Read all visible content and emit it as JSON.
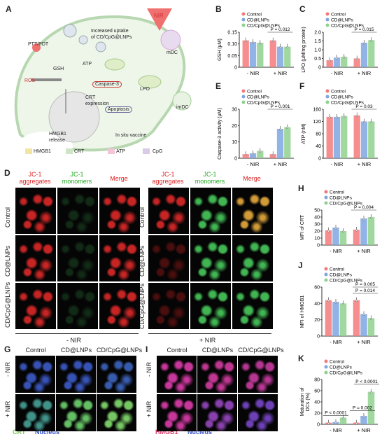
{
  "panel_letters": [
    "A",
    "B",
    "C",
    "D",
    "E",
    "F",
    "G",
    "H",
    "I",
    "J",
    "K"
  ],
  "schematic": {
    "nir": "NIR",
    "ptt_pdt": "PTT/PDT",
    "uptake": "Increased uptake\nof CD/CpG@LNPs",
    "ros": "ROS",
    "gsh": "GSH",
    "atp": "ATP",
    "caspase": "Caspase-3",
    "lpo": "LPO",
    "crt_expr": "CRT\nexpression",
    "apoptosis": "Apoptosis",
    "hmgb1_release": "HMGB1\nrelease",
    "in_situ": "In situ vaccine",
    "imdc": "imDC",
    "mdc": "mDC",
    "legend": [
      "HMGB1",
      "CRT",
      "ATP",
      "CpG"
    ]
  },
  "legend_groups": [
    "Control",
    "CD@LNPs",
    "CD/CpG@LNPs"
  ],
  "group_colors": {
    "control": "#f4797a",
    "cd": "#7ea6e0",
    "cdcpg": "#8fd18e"
  },
  "x_groups": [
    "- NIR",
    "+ NIR"
  ],
  "panel_D": {
    "columns": [
      "JC-1\naggregates",
      "JC-1\nmonomers",
      "Merge"
    ],
    "rows": [
      "Control",
      "CD@LNPs",
      "CD/CpG@LNPs"
    ],
    "left_label": "- NIR",
    "right_label": "+ NIR"
  },
  "panel_G": {
    "columns": [
      "Control",
      "CD@LNPs",
      "CD/CpG@LNPs"
    ],
    "rows": [
      "- NIR",
      "+ NIR"
    ],
    "stain1": "CRT",
    "stain2": "Nucleus"
  },
  "panel_I": {
    "columns": [
      "Control",
      "CD@LNPs",
      "CD/CpG@LNPs"
    ],
    "rows": [
      "- NIR",
      "+ NIR"
    ],
    "stain1": "HMGB1",
    "stain2": "Nucleus"
  },
  "chart_data": [
    {
      "id": "B",
      "type": "bar",
      "ylabel": "GSH (μM)",
      "ylim": [
        0,
        0.15
      ],
      "yticks": [
        0,
        0.05,
        0.1,
        0.15
      ],
      "ytick_labels": [
        "0",
        "0.05",
        "0.10",
        "0.15"
      ],
      "categories": [
        "- NIR",
        "+ NIR"
      ],
      "series": [
        {
          "name": "Control",
          "values": [
            0.115,
            0.115
          ]
        },
        {
          "name": "CD@LNPs",
          "values": [
            0.108,
            0.088
          ]
        },
        {
          "name": "CD/CpG@LNPs",
          "values": [
            0.105,
            0.088
          ]
        }
      ],
      "annotations": [
        {
          "text": "P = 0.012"
        }
      ]
    },
    {
      "id": "C",
      "type": "bar",
      "ylabel": "LPO (μM/mg protein)",
      "ylim": [
        0,
        2.0
      ],
      "yticks": [
        0,
        0.5,
        1.0,
        1.5,
        2.0
      ],
      "ytick_labels": [
        "0",
        "0.5",
        "1.0",
        "1.5",
        "2.0"
      ],
      "categories": [
        "- NIR",
        "+ NIR"
      ],
      "series": [
        {
          "name": "Control",
          "values": [
            0.4,
            0.5
          ]
        },
        {
          "name": "CD@LNPs",
          "values": [
            0.55,
            1.4
          ]
        },
        {
          "name": "CD/CpG@LNPs",
          "values": [
            0.6,
            1.55
          ]
        }
      ],
      "annotations": [
        {
          "text": "P = 0.015"
        }
      ]
    },
    {
      "id": "E",
      "type": "bar",
      "ylabel": "Caspase-3 activity (μM)",
      "ylim": [
        0,
        30
      ],
      "yticks": [
        0,
        10,
        20,
        30
      ],
      "ytick_labels": [
        "0",
        "10",
        "20",
        "30"
      ],
      "categories": [
        "- NIR",
        "+ NIR"
      ],
      "series": [
        {
          "name": "Control",
          "values": [
            2.5,
            2.5
          ]
        },
        {
          "name": "CD@LNPs",
          "values": [
            3,
            18
          ]
        },
        {
          "name": "CD/CpG@LNPs",
          "values": [
            4.5,
            19
          ]
        }
      ],
      "annotations": [
        {
          "text": "P = 0.001"
        }
      ]
    },
    {
      "id": "F",
      "type": "bar",
      "ylabel": "ATP (nM)",
      "ylim": [
        0,
        160
      ],
      "yticks": [
        0,
        40,
        80,
        120,
        160
      ],
      "ytick_labels": [
        "0",
        "40",
        "80",
        "120",
        "160"
      ],
      "categories": [
        "- NIR",
        "+ NIR"
      ],
      "series": [
        {
          "name": "Control",
          "values": [
            135,
            140
          ]
        },
        {
          "name": "CD@LNPs",
          "values": [
            135,
            120
          ]
        },
        {
          "name": "CD/CpG@LNPs",
          "values": [
            138,
            120
          ]
        }
      ],
      "annotations": [
        {
          "text": "P = 0.03"
        }
      ]
    },
    {
      "id": "H",
      "type": "bar",
      "ylabel": "MFI of CRT",
      "ylim": [
        0,
        50
      ],
      "yticks": [
        0,
        10,
        20,
        30,
        40,
        50
      ],
      "ytick_labels": [
        "0",
        "10",
        "20",
        "30",
        "40",
        "50"
      ],
      "categories": [
        "- NIR",
        "+ NIR"
      ],
      "series": [
        {
          "name": "Control",
          "values": [
            21,
            22
          ]
        },
        {
          "name": "CD@LNPs",
          "values": [
            25,
            38
          ]
        },
        {
          "name": "CD/CpG@LNPs",
          "values": [
            20,
            40
          ]
        }
      ],
      "annotations": [
        {
          "text": "P = 0.004"
        }
      ]
    },
    {
      "id": "J",
      "type": "bar",
      "ylabel": "MFI of HMGB1",
      "ylim": [
        0,
        60
      ],
      "yticks": [
        0,
        20,
        40,
        60
      ],
      "ytick_labels": [
        "0",
        "20",
        "40",
        "60"
      ],
      "categories": [
        "- NIR",
        "+ NIR"
      ],
      "series": [
        {
          "name": "Control",
          "values": [
            44,
            44
          ]
        },
        {
          "name": "CD@LNPs",
          "values": [
            42,
            27
          ]
        },
        {
          "name": "CD/CpG@LNPs",
          "values": [
            40,
            22
          ]
        }
      ],
      "annotations": [
        {
          "text": "P = 0.005"
        },
        {
          "text": "P = 0.014"
        }
      ]
    },
    {
      "id": "K",
      "type": "bar",
      "ylabel": "Maturation of\nDCs (%)",
      "ylim": [
        0,
        80
      ],
      "yticks": [
        0,
        20,
        40,
        60,
        80
      ],
      "ytick_labels": [
        "0",
        "20",
        "40",
        "60",
        "80"
      ],
      "categories": [
        "- NIR",
        "+ NIR"
      ],
      "series": [
        {
          "name": "Control",
          "values": [
            3,
            3
          ]
        },
        {
          "name": "CD@LNPs",
          "values": [
            4,
            15
          ]
        },
        {
          "name": "CD/CpG@LNPs",
          "values": [
            12,
            58
          ]
        }
      ],
      "annotations": [
        {
          "text": "P < 0.0001"
        },
        {
          "text": "P = 0.002"
        },
        {
          "text": "P < 0.0001"
        }
      ]
    }
  ]
}
